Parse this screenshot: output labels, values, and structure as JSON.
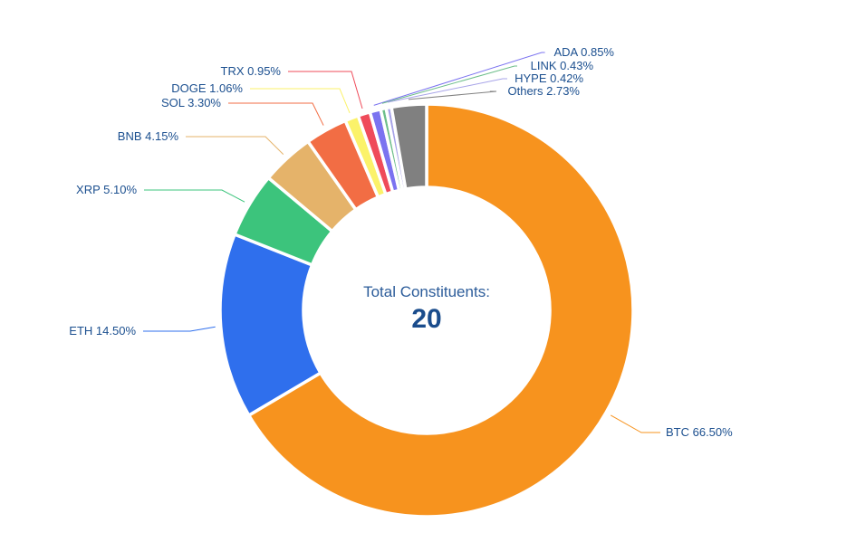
{
  "chart_data": {
    "type": "pie",
    "variant": "donut",
    "center_label": "Total Constituents:",
    "center_value": "20",
    "start": "top, clockwise",
    "slices": [
      {
        "name": "BTC",
        "value": 66.5,
        "label": "BTC 66.50%",
        "color": "#F7931E"
      },
      {
        "name": "ETH",
        "value": 14.5,
        "label": "ETH 14.50%",
        "color": "#2F6FED"
      },
      {
        "name": "XRP",
        "value": 5.1,
        "label": "XRP 5.10%",
        "color": "#3CC47C"
      },
      {
        "name": "BNB",
        "value": 4.15,
        "label": "BNB 4.15%",
        "color": "#E5B36A"
      },
      {
        "name": "SOL",
        "value": 3.3,
        "label": "SOL 3.30%",
        "color": "#F26D44"
      },
      {
        "name": "DOGE",
        "value": 1.06,
        "label": "DOGE 1.06%",
        "color": "#FBF26A"
      },
      {
        "name": "TRX",
        "value": 0.95,
        "label": "TRX 0.95%",
        "color": "#EF4B5A"
      },
      {
        "name": "ADA",
        "value": 0.85,
        "label": "ADA 0.85%",
        "color": "#7B73F0"
      },
      {
        "name": "LINK",
        "value": 0.43,
        "label": "LINK 0.43%",
        "color": "#6DBE8A"
      },
      {
        "name": "HYPE",
        "value": 0.42,
        "label": "HYPE 0.42%",
        "color": "#A7A3E8"
      },
      {
        "name": "Others",
        "value": 2.73,
        "label": "Others 2.73%",
        "color": "#808080"
      }
    ]
  }
}
